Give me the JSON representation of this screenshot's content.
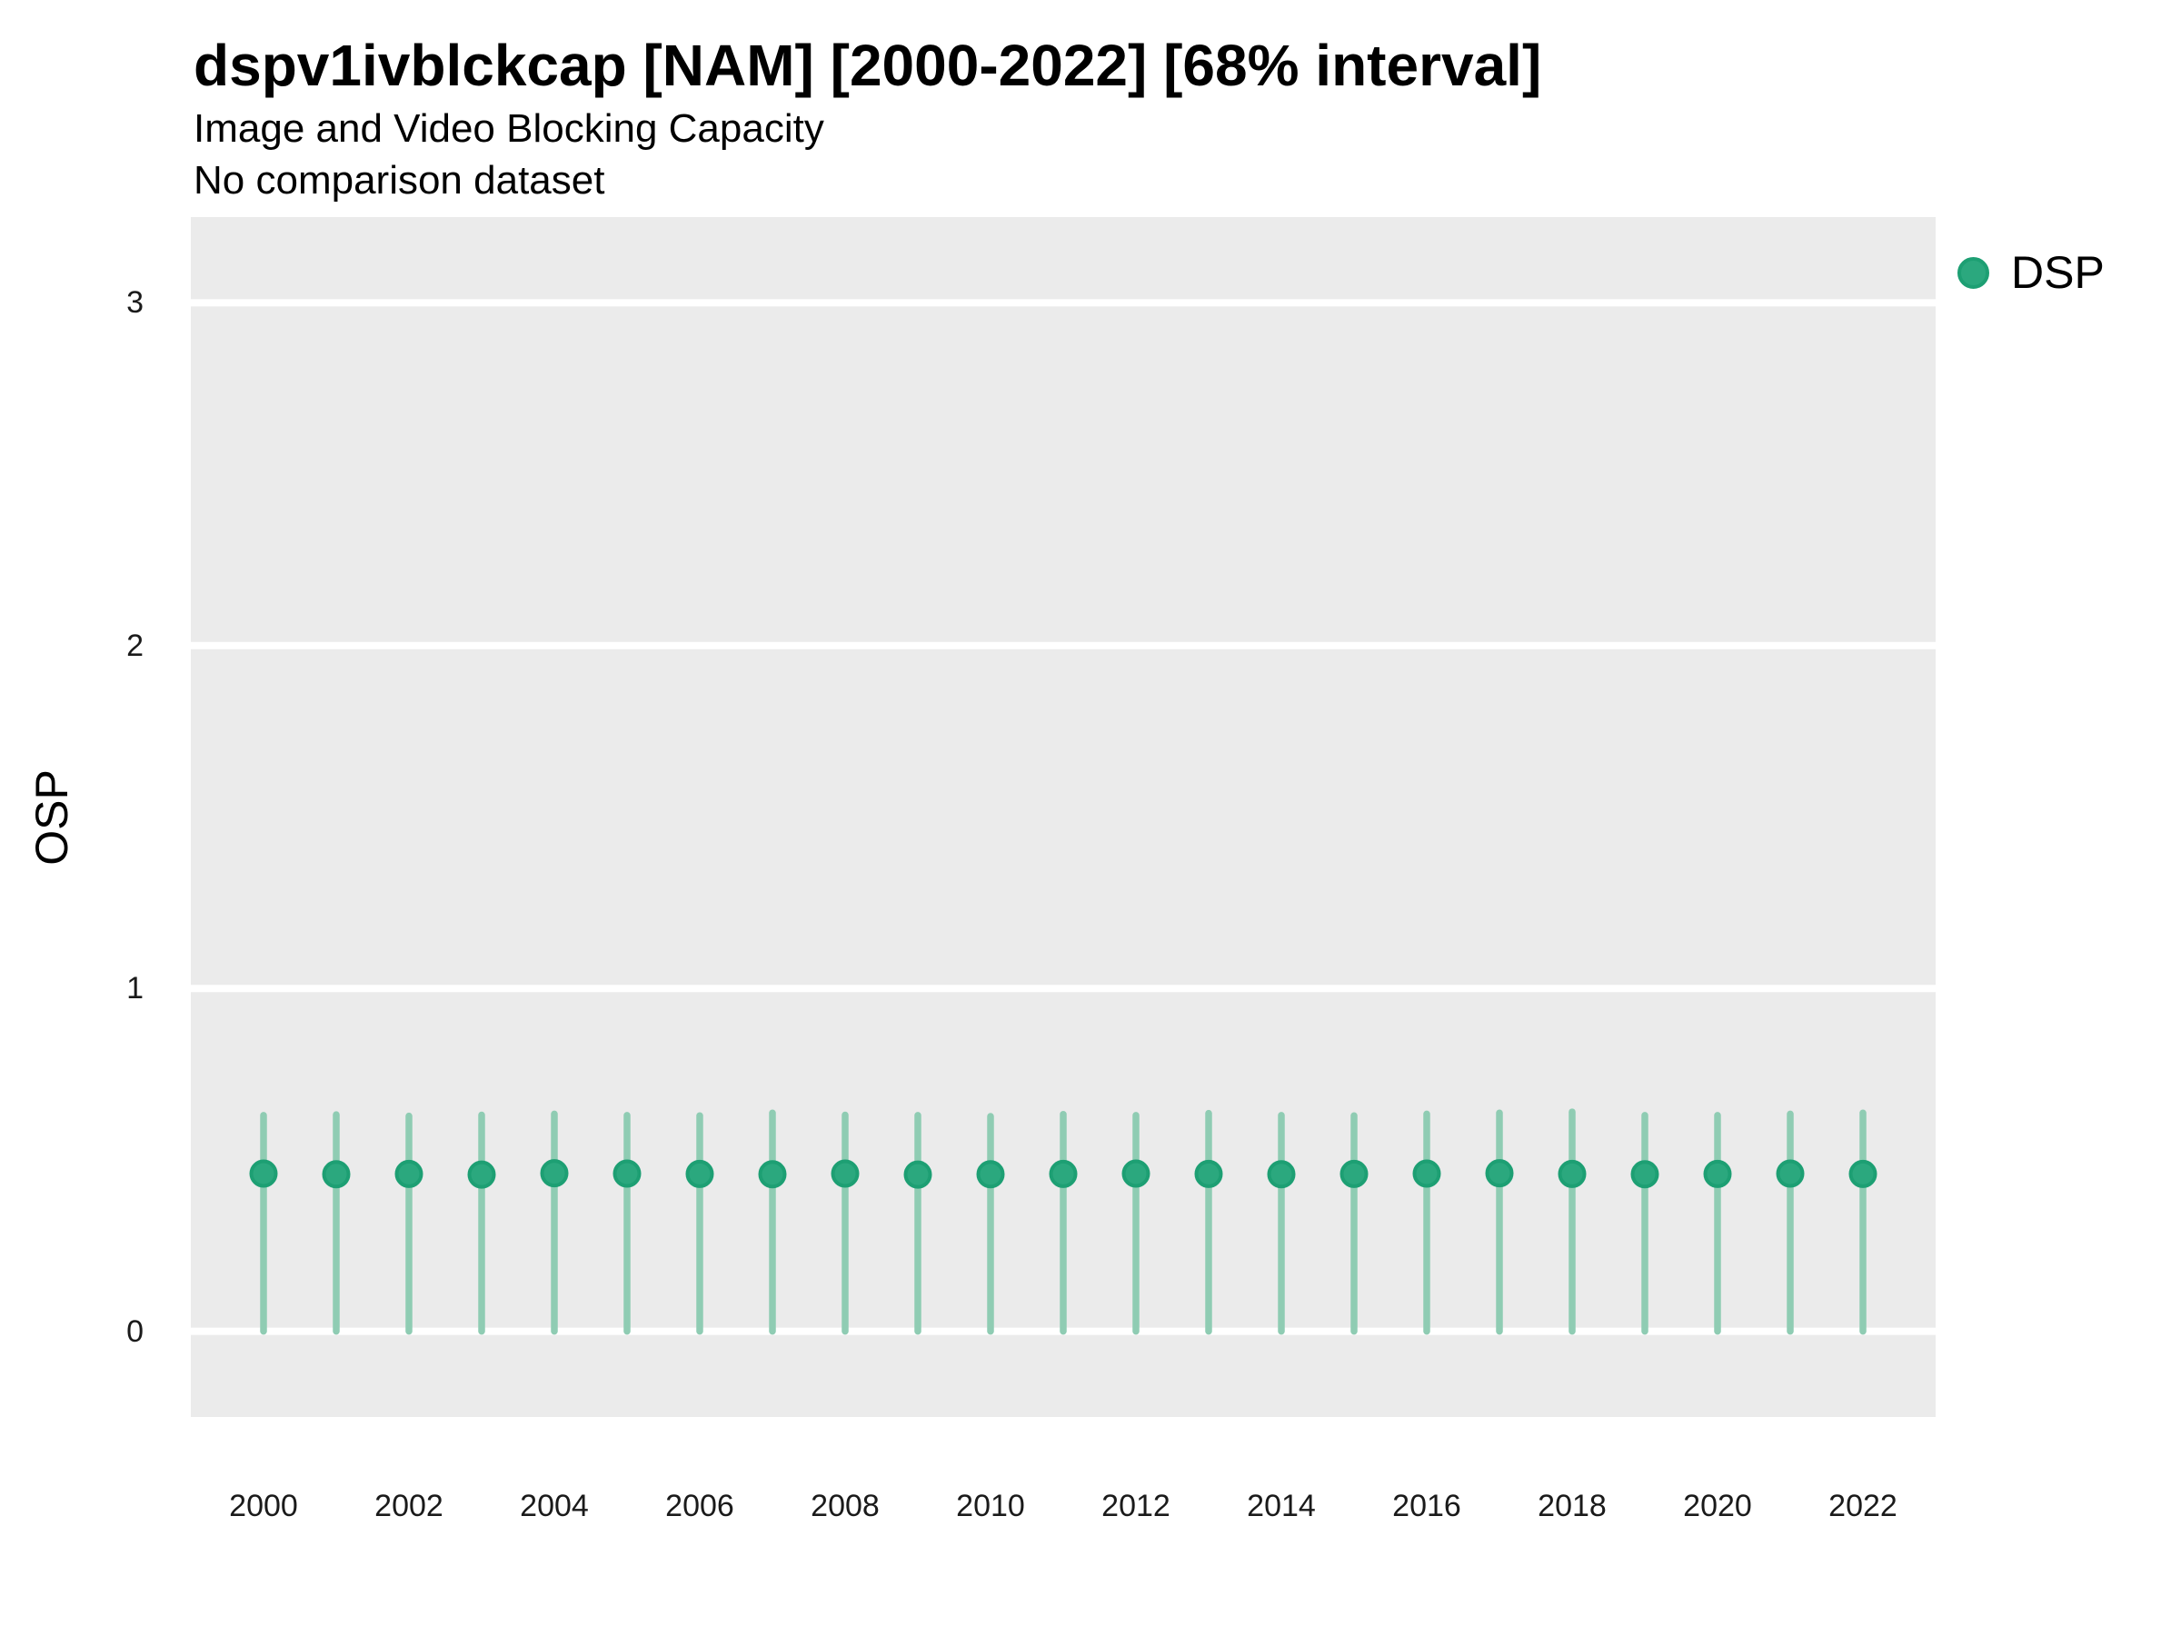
{
  "header": {
    "title": "dspv1ivblckcap [NAM] [2000-2022] [68% interval]",
    "subtitle": "Image and Video Blocking Capacity",
    "note": "No comparison dataset"
  },
  "legend": {
    "position": "right",
    "items": [
      {
        "label": "DSP",
        "color": "#2ba87e"
      }
    ]
  },
  "chart_data": {
    "type": "scatter",
    "title": "dspv1ivblckcap [NAM] [2000-2022] [68% interval]",
    "subtitle": "Image and Video Blocking Capacity",
    "note": "No comparison dataset",
    "interval": "68% interval",
    "xlabel": "",
    "ylabel": "OSP",
    "ylim": [
      -0.25,
      3.25
    ],
    "yticks": [
      0,
      1,
      2,
      3
    ],
    "xticks": [
      2000,
      2002,
      2004,
      2006,
      2008,
      2010,
      2012,
      2014,
      2016,
      2018,
      2020,
      2022
    ],
    "x": [
      2000,
      2001,
      2002,
      2003,
      2004,
      2005,
      2006,
      2007,
      2008,
      2009,
      2010,
      2011,
      2012,
      2013,
      2014,
      2015,
      2016,
      2017,
      2018,
      2019,
      2020,
      2021,
      2022
    ],
    "series": [
      {
        "name": "DSP",
        "values": [
          0.46,
          0.458,
          0.459,
          0.457,
          0.461,
          0.46,
          0.459,
          0.458,
          0.46,
          0.457,
          0.458,
          0.459,
          0.46,
          0.459,
          0.458,
          0.459,
          0.46,
          0.461,
          0.459,
          0.458,
          0.459,
          0.46,
          0.459
        ],
        "lower": [
          0.0,
          0.0,
          0.0,
          0.0,
          0.0,
          0.0,
          0.0,
          0.0,
          0.0,
          0.0,
          0.0,
          0.0,
          0.0,
          0.0,
          0.0,
          0.0,
          0.0,
          0.0,
          0.0,
          0.0,
          0.0,
          0.0,
          0.0
        ],
        "upper": [
          0.63,
          0.632,
          0.628,
          0.631,
          0.634,
          0.63,
          0.629,
          0.637,
          0.631,
          0.63,
          0.627,
          0.633,
          0.63,
          0.636,
          0.63,
          0.629,
          0.634,
          0.637,
          0.64,
          0.63,
          0.63,
          0.634,
          0.637
        ]
      }
    ],
    "grid": "horizontal-major-only",
    "legend_position": "right",
    "colors": {
      "point_fill": "#2ba87e",
      "point_stroke": "#1d9f73",
      "interval_bar": "#8fccb3",
      "panel_bg": "#ebebeb",
      "gridline": "#ffffff",
      "text": "#000000"
    }
  }
}
